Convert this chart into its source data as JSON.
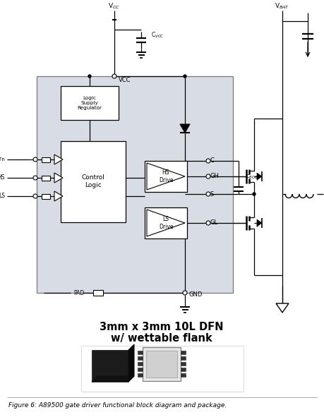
{
  "caption": "Figure 6: A89500 gate driver functional block diagram and package.",
  "pkg_title_line1": "3mm x 3mm 10L DFN",
  "pkg_title_line2": "w/ wettable flank",
  "bg_color": "#ffffff",
  "ic_bg": "#d8dce4",
  "figsize": [
    4.59,
    5.91
  ],
  "dpi": 100
}
